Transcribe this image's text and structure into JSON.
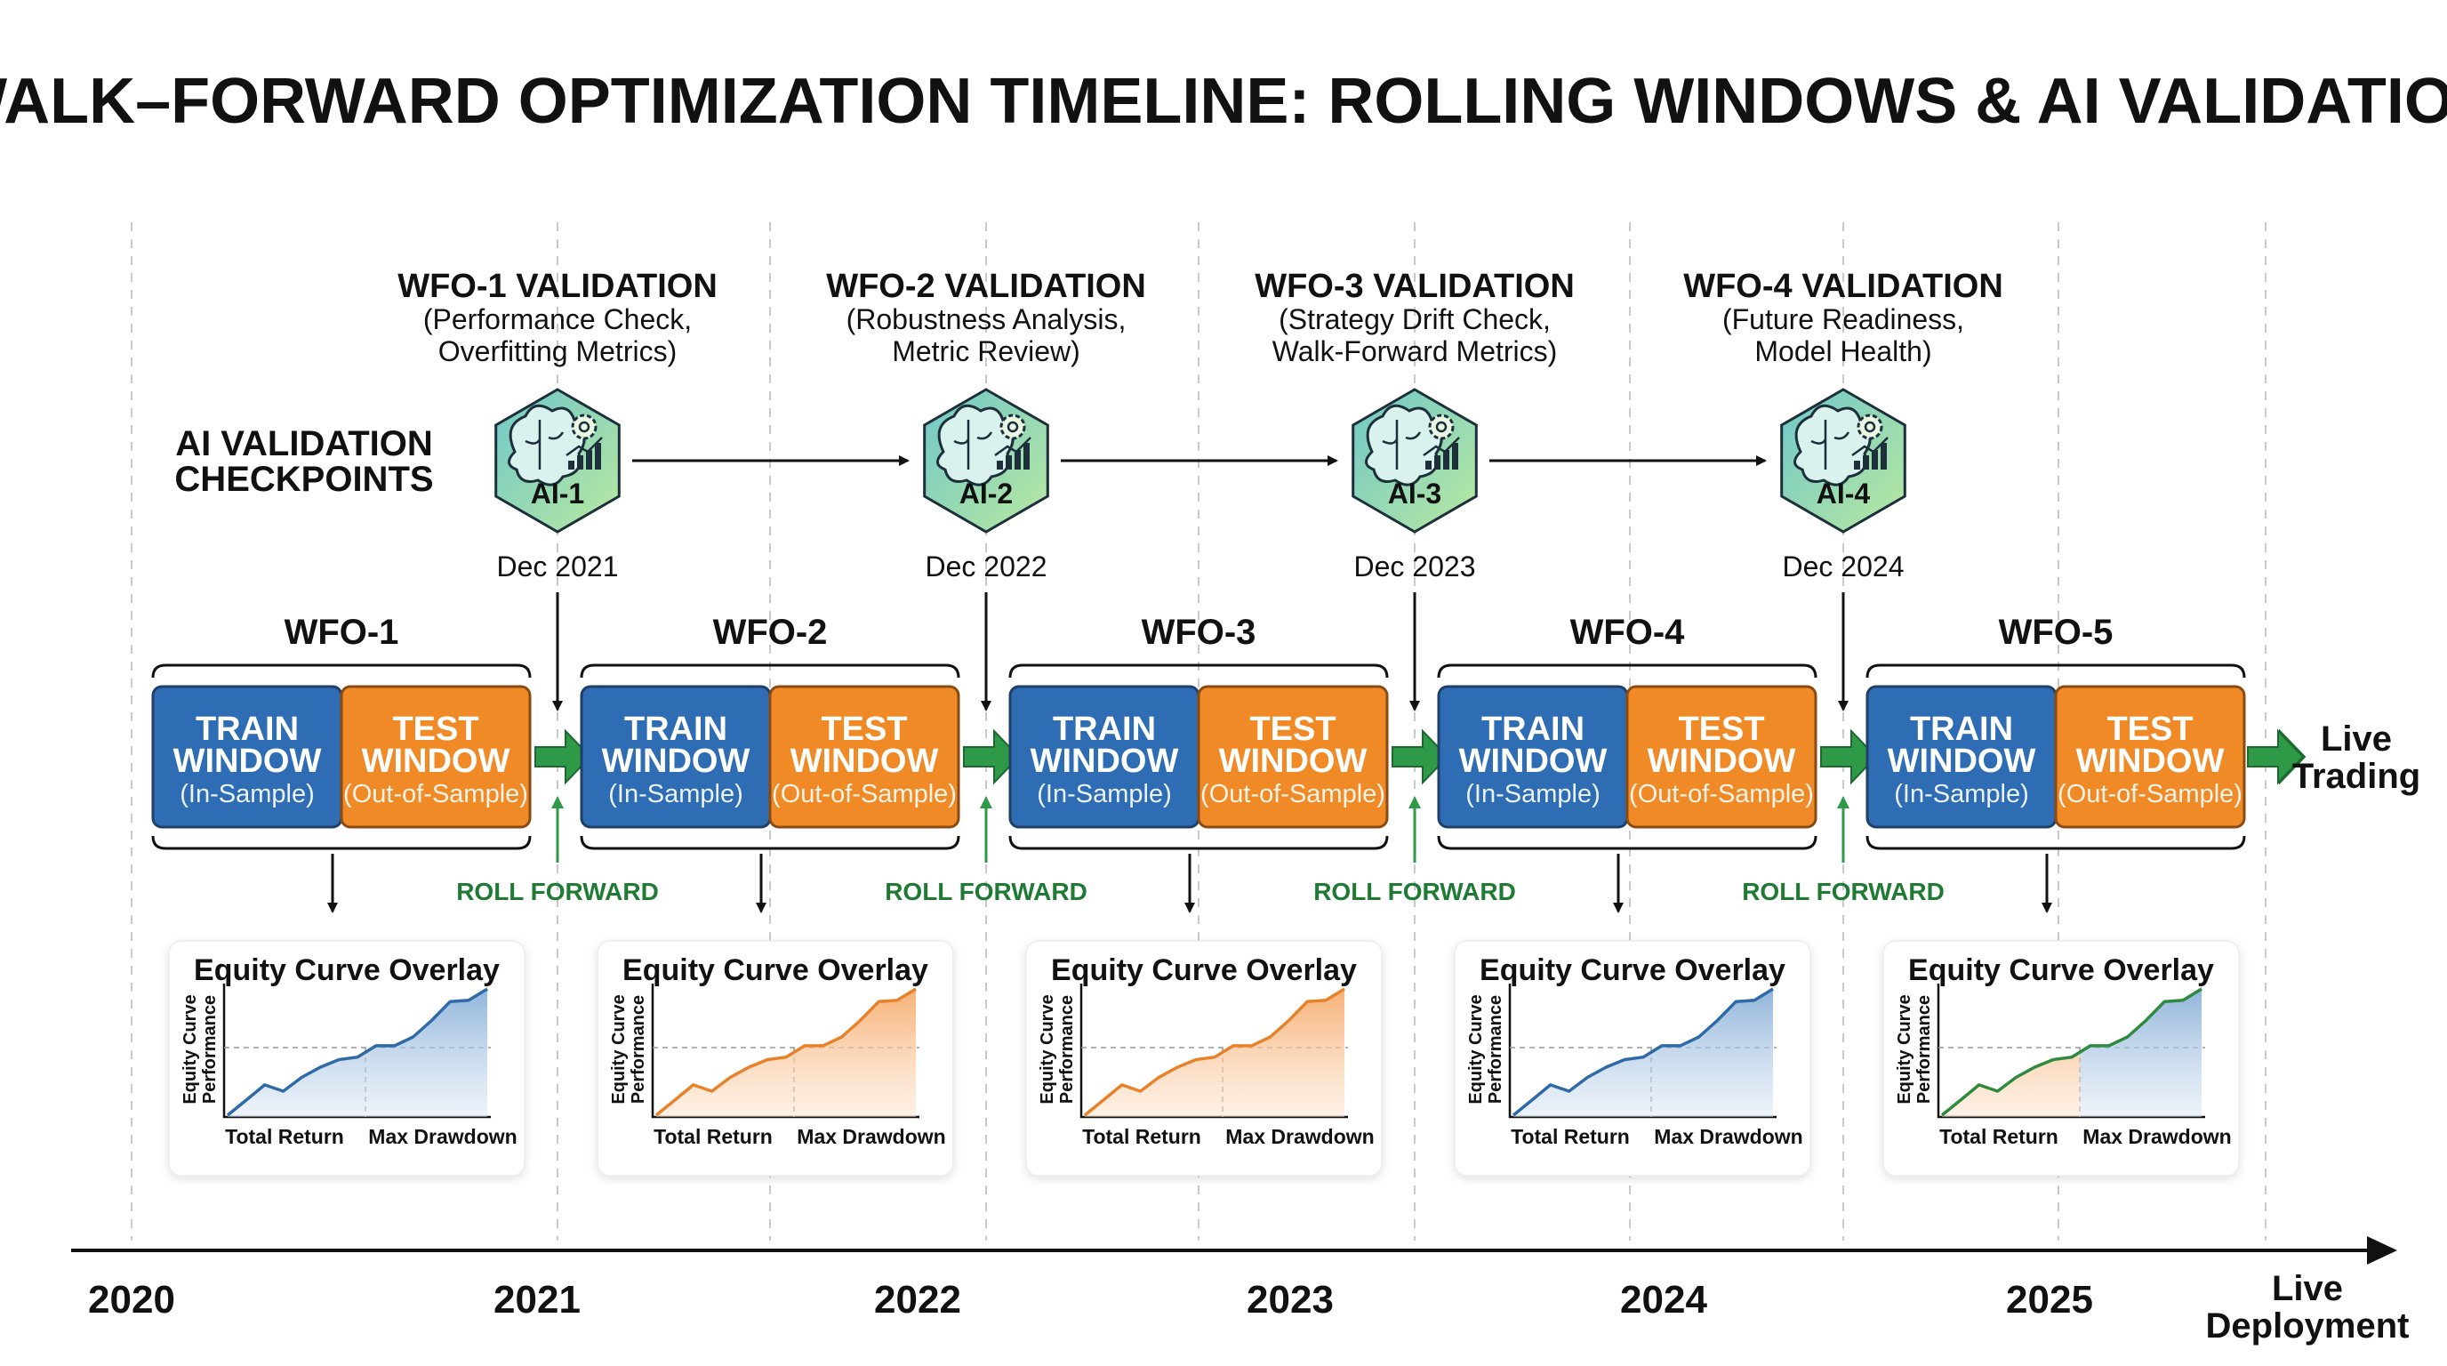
{
  "title": "WALK–FORWARD OPTIMIZATION TIMELINE: ROLLING WINDOWS & AI VALIDATION",
  "checkpoints_label": [
    "AI VALIDATION",
    "CHECKPOINTS"
  ],
  "validations": [
    {
      "title": "WFO-1 VALIDATION",
      "lines": [
        "(Performance Check,",
        "Overfitting Metrics)"
      ],
      "badge": "AI-1",
      "date": "Dec 2021"
    },
    {
      "title": "WFO-2 VALIDATION",
      "lines": [
        "(Robustness Analysis,",
        "Metric Review)"
      ],
      "badge": "AI-2",
      "date": "Dec 2022"
    },
    {
      "title": "WFO-3 VALIDATION",
      "lines": [
        "(Strategy Drift Check,",
        "Walk-Forward Metrics)"
      ],
      "badge": "AI-3",
      "date": "Dec 2023"
    },
    {
      "title": "WFO-4 VALIDATION",
      "lines": [
        "(Future Readiness,",
        "Model Health)"
      ],
      "badge": "AI-4",
      "date": "Dec 2024"
    }
  ],
  "windows": [
    {
      "label": "WFO-1",
      "chart_fill": "blue"
    },
    {
      "label": "WFO-2",
      "chart_fill": "orange"
    },
    {
      "label": "WFO-3",
      "chart_fill": "orange"
    },
    {
      "label": "WFO-4",
      "chart_fill": "blue"
    },
    {
      "label": "WFO-5",
      "chart_fill": "mixed"
    }
  ],
  "train": {
    "line1": "TRAIN",
    "line2": "WINDOW",
    "sub": "(In-Sample)"
  },
  "test": {
    "line1": "TEST",
    "line2": "WINDOW",
    "sub": "(Out-of-Sample)"
  },
  "roll_forward": "ROLL FORWARD",
  "live_trading": [
    "Live",
    "Trading"
  ],
  "equity": {
    "title": "Equity Curve Overlay",
    "ylabel": [
      "Equity Curve",
      "Performance"
    ],
    "x_left": "Total Return",
    "x_right": "Max Drawdown"
  },
  "years": [
    "2020",
    "2021",
    "2022",
    "2023",
    "2024",
    "2025"
  ],
  "live_deployment": [
    "Live",
    "Deployment"
  ],
  "colors": {
    "train": "#2e6db4",
    "test": "#ef8a26",
    "green": "#2e9a48",
    "roll_text": "#1f7a34",
    "hex_top": "#6fc7c9",
    "hex_bottom": "#b7e8a0",
    "curve_blue": "#2f6aa8",
    "curve_orange": "#e8822a",
    "curve_green": "#2e8b3e"
  }
}
